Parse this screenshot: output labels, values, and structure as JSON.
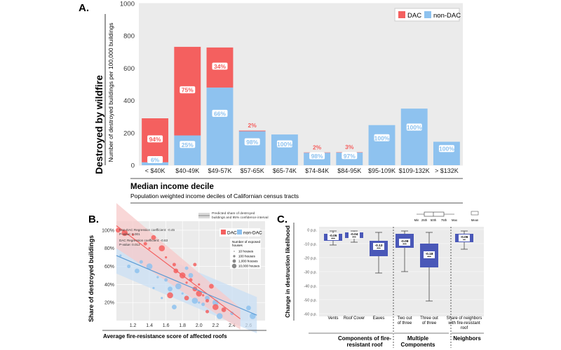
{
  "panels": {
    "a": {
      "letter": "A."
    },
    "b": {
      "letter": "B."
    },
    "c": {
      "letter": "C."
    }
  },
  "colors": {
    "dac": "#f4605f",
    "non_dac": "#8ec2ef",
    "box_fill": "#4a58b8",
    "ci_red": "#f7c9c9",
    "ci_blue": "#c9dff4"
  },
  "chart_data": [
    {
      "type": "bar",
      "panel": "A",
      "ylabel_big": "Destroyed by wildfire",
      "ylabel": "Number of destroyed buildings per 100,000 buildings",
      "xlabel": "Median income decile",
      "xlabel_sub": "Population weighted income deciles of Californian census tracts",
      "ylim": [
        0,
        1000
      ],
      "yticks": [
        0,
        200,
        400,
        600,
        800,
        1000
      ],
      "categories": [
        "< $40K",
        "$40-49K",
        "$49-57K",
        "$57-65K",
        "$65-74K",
        "$74-84K",
        "$84-95K",
        "$95-109K",
        "$109-132K",
        "> $132K"
      ],
      "series": [
        {
          "name": "non-DAC",
          "values": [
            18,
            184,
            480,
            210,
            190,
            77,
            78,
            248,
            350,
            145
          ]
        },
        {
          "name": "DAC",
          "values": [
            272,
            548,
            248,
            4,
            0,
            2,
            2,
            0,
            0,
            0
          ]
        }
      ],
      "labels_non_dac": [
        "6%",
        "25%",
        "66%",
        "98%",
        "100%",
        "98%",
        "97%",
        "100%",
        "100%",
        "100%"
      ],
      "labels_dac": [
        "94%",
        "75%",
        "34%",
        "2%",
        "",
        "2%",
        "3%",
        "",
        "",
        ""
      ],
      "legend": [
        "DAC",
        "non-DAC"
      ],
      "legend_position": "top-right",
      "grid": false
    },
    {
      "type": "scatter",
      "panel": "B",
      "ylabel": "Share of destroyed buildings",
      "xlabel": "Average fire-resistance score of affected roofs",
      "xlim": [
        1.0,
        2.8
      ],
      "ylim": [
        0.0,
        1.1
      ],
      "xticks": [
        "1.2",
        "1.4",
        "1.6",
        "1.8",
        "2.0",
        "2.2",
        "2.4",
        "2.6"
      ],
      "yticks": [
        "20%",
        "40%",
        "60%",
        "80%",
        "100%"
      ],
      "legend_top": "Predicted share of destroyed buildings and 95% confidence interval",
      "legend": [
        "DAC",
        "non-DAC"
      ],
      "size_legend_title": "Number of exposed houses",
      "size_legend": [
        "10 houses",
        "100 houses",
        "1,000 houses",
        "10,000 houses"
      ],
      "annotations": [
        "Non-DAC Regression coefficient: -0.45",
        "P-value: 0.001",
        "DAC Regression coefficient: -0.63",
        "P-value: 0.012"
      ],
      "lines": [
        {
          "name": "DAC",
          "x": [
            1.0,
            2.5
          ],
          "y": [
            1.05,
            0.02
          ]
        },
        {
          "name": "non-DAC",
          "x": [
            1.0,
            2.7
          ],
          "y": [
            0.72,
            0.06
          ]
        }
      ],
      "points_dac": [
        {
          "x": 1.02,
          "y": 1.0
        },
        {
          "x": 1.1,
          "y": 0.97
        },
        {
          "x": 1.2,
          "y": 0.95
        },
        {
          "x": 1.35,
          "y": 0.85
        },
        {
          "x": 1.45,
          "y": 0.92
        },
        {
          "x": 1.55,
          "y": 0.8
        },
        {
          "x": 1.6,
          "y": 0.7
        },
        {
          "x": 1.7,
          "y": 0.62
        },
        {
          "x": 1.72,
          "y": 0.55
        },
        {
          "x": 1.8,
          "y": 0.5
        },
        {
          "x": 1.85,
          "y": 0.42
        },
        {
          "x": 1.9,
          "y": 0.45
        },
        {
          "x": 1.95,
          "y": 0.35
        },
        {
          "x": 2.0,
          "y": 0.3
        },
        {
          "x": 2.05,
          "y": 0.28
        },
        {
          "x": 2.1,
          "y": 0.22
        },
        {
          "x": 2.15,
          "y": 0.38
        },
        {
          "x": 2.2,
          "y": 0.15
        },
        {
          "x": 1.4,
          "y": 0.8
        },
        {
          "x": 1.95,
          "y": 0.62
        },
        {
          "x": 2.3,
          "y": 0.12
        },
        {
          "x": 1.65,
          "y": 0.28
        },
        {
          "x": 2.0,
          "y": 0.4
        },
        {
          "x": 2.1,
          "y": 0.1
        },
        {
          "x": 1.85,
          "y": 0.25
        }
      ],
      "points_non_dac": [
        {
          "x": 1.05,
          "y": 0.72
        },
        {
          "x": 1.15,
          "y": 0.6
        },
        {
          "x": 1.25,
          "y": 0.55
        },
        {
          "x": 1.4,
          "y": 0.6
        },
        {
          "x": 1.5,
          "y": 0.48
        },
        {
          "x": 1.6,
          "y": 0.45
        },
        {
          "x": 1.65,
          "y": 0.35
        },
        {
          "x": 1.75,
          "y": 0.38
        },
        {
          "x": 1.8,
          "y": 0.3
        },
        {
          "x": 1.85,
          "y": 0.58
        },
        {
          "x": 1.9,
          "y": 0.5
        },
        {
          "x": 1.95,
          "y": 0.22
        },
        {
          "x": 2.0,
          "y": 0.2
        },
        {
          "x": 2.05,
          "y": 0.18
        },
        {
          "x": 2.1,
          "y": 0.25
        },
        {
          "x": 2.2,
          "y": 0.2
        },
        {
          "x": 2.3,
          "y": 0.12
        },
        {
          "x": 2.4,
          "y": 0.08
        },
        {
          "x": 2.6,
          "y": 0.14
        },
        {
          "x": 2.65,
          "y": 0.05
        },
        {
          "x": 1.55,
          "y": 0.25
        },
        {
          "x": 1.3,
          "y": 0.65
        },
        {
          "x": 1.7,
          "y": 0.15
        },
        {
          "x": 2.25,
          "y": 0.05
        },
        {
          "x": 1.45,
          "y": 0.36
        }
      ]
    },
    {
      "type": "box",
      "panel": "C",
      "ylabel": "Change in destruction likelihood",
      "ylim": [
        -60,
        0
      ],
      "yticks": [
        "0 p.p.",
        "-10 p.p.",
        "-20 p.p.",
        "-30 p.p.",
        "-40 p.p.",
        "-50 p.p.",
        "-60 p.p."
      ],
      "legend_labels": [
        "Min",
        "25th",
        "50th",
        "75th",
        "Max",
        "Mean"
      ],
      "boxes": [
        {
          "label": "Vents",
          "mean": "-0.05",
          "stars": "***",
          "min": -11,
          "q1": -8,
          "median": -5,
          "q3": -3,
          "max": -1
        },
        {
          "label": "Roof Cover",
          "mean": "-0.04",
          "stars": "***",
          "min": -9,
          "q1": -6,
          "median": -4,
          "q3": -2,
          "max": -1
        },
        {
          "label": "Eaves",
          "mean": "-0.13",
          "stars": "***",
          "min": -31,
          "q1": -19,
          "median": -12,
          "q3": -8,
          "max": -2
        },
        {
          "label": "Two out of three",
          "mean": "-0.09",
          "stars": "***",
          "min": -30,
          "q1": -13,
          "median": -9,
          "q3": -3,
          "max": -1
        },
        {
          "label": "Three out of three",
          "mean": "-0.18",
          "stars": "***",
          "min": -51,
          "q1": -27,
          "median": -18,
          "q3": -10,
          "max": -2
        },
        {
          "label": "Share of neighbors with fire-resistant roof",
          "mean": "-0.06",
          "stars": "**",
          "min": -14,
          "q1": -9,
          "median": -6,
          "q3": -3,
          "max": -1
        }
      ],
      "groups": [
        "Components of fire-resistant roof",
        "Multiple Components",
        "Neighbors"
      ]
    }
  ]
}
